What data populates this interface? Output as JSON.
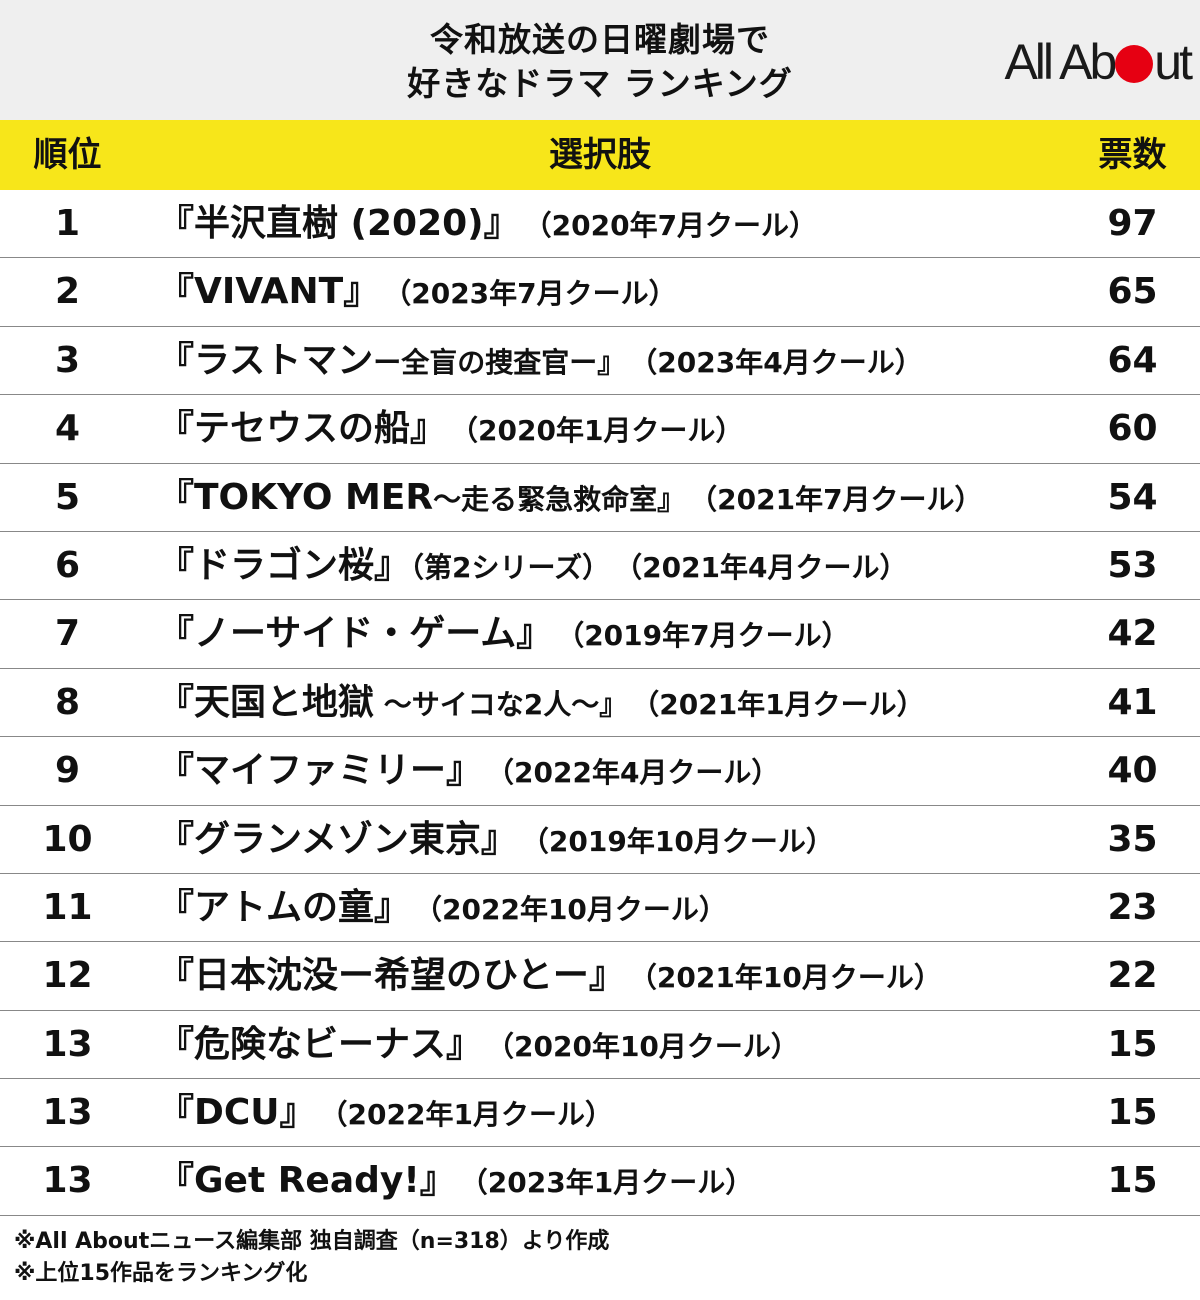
{
  "header": {
    "title_line1": "令和放送の日曜劇場で",
    "title_line2": "好きなドラマ ランキング",
    "logo_part1": "All Ab",
    "logo_part2": "ut"
  },
  "table": {
    "col_rank": "順位",
    "col_choice": "選択肢",
    "col_votes": "票数",
    "rows": [
      {
        "rank": "1",
        "title": "『半沢直樹 (2020)』",
        "sub": "",
        "period": "（2020年7月クール）",
        "votes": "97"
      },
      {
        "rank": "2",
        "title": "『VIVANT』",
        "sub": "",
        "period": "（2023年7月クール）",
        "votes": "65"
      },
      {
        "rank": "3",
        "title": "『ラストマン",
        "sub": "ー全盲の捜査官ー』",
        "period": "（2023年4月クール）",
        "votes": "64"
      },
      {
        "rank": "4",
        "title": "『テセウスの船』",
        "sub": "",
        "period": "（2020年1月クール）",
        "votes": "60"
      },
      {
        "rank": "5",
        "title": "『TOKYO MER",
        "sub": "〜走る緊急救命室』",
        "period": "（2021年7月クール）",
        "votes": "54"
      },
      {
        "rank": "6",
        "title": "『ドラゴン桜』",
        "sub": "（第2シリーズ）",
        "period": "（2021年4月クール）",
        "votes": "53"
      },
      {
        "rank": "7",
        "title": "『ノーサイド・ゲーム』",
        "sub": "",
        "period": "（2019年7月クール）",
        "votes": "42"
      },
      {
        "rank": "8",
        "title": "『天国と地獄",
        "sub": " 〜サイコな2人〜』",
        "period": "（2021年1月クール）",
        "votes": "41"
      },
      {
        "rank": "9",
        "title": "『マイファミリー』",
        "sub": "",
        "period": "（2022年4月クール）",
        "votes": "40"
      },
      {
        "rank": "10",
        "title": "『グランメゾン東京』",
        "sub": "",
        "period": "（2019年10月クール）",
        "votes": "35"
      },
      {
        "rank": "11",
        "title": "『アトムの童』",
        "sub": "",
        "period": "（2022年10月クール）",
        "votes": "23"
      },
      {
        "rank": "12",
        "title": "『日本沈没ー希望のひとー』",
        "sub": "",
        "period": "（2021年10月クール）",
        "votes": "22"
      },
      {
        "rank": "13",
        "title": "『危険なビーナス』",
        "sub": "",
        "period": "（2020年10月クール）",
        "votes": "15"
      },
      {
        "rank": "13",
        "title": "『DCU』",
        "sub": "",
        "period": "（2022年1月クール）",
        "votes": "15"
      },
      {
        "rank": "13",
        "title": "『Get Ready!』",
        "sub": "",
        "period": "（2023年1月クール）",
        "votes": "15"
      }
    ]
  },
  "footnotes": {
    "line1": "※All Aboutニュース編集部 独自調査（n=318）より作成",
    "line2": "※上位15作品をランキング化"
  },
  "colors": {
    "header_bg": "#efefef",
    "table_header_bg": "#f7e61a",
    "logo_dot": "#e60012"
  }
}
